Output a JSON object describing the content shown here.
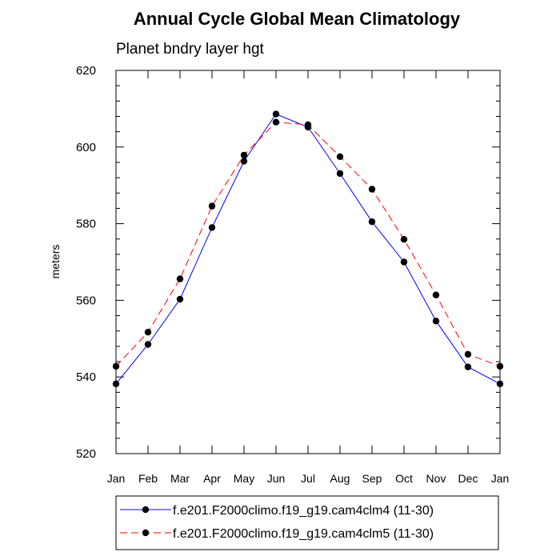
{
  "chart_data": {
    "type": "line",
    "title": "Annual Cycle Global Mean Climatology",
    "subtitle": "Planet bndry layer hgt",
    "xlabel": "",
    "ylabel": "meters",
    "categories": [
      "Jan",
      "Feb",
      "Mar",
      "Apr",
      "May",
      "Jun",
      "Jul",
      "Aug",
      "Sep",
      "Oct",
      "Nov",
      "Dec",
      "Jan"
    ],
    "ylim": [
      520,
      620
    ],
    "yticks": [
      520,
      540,
      560,
      580,
      600,
      620
    ],
    "series": [
      {
        "name": "f.e201.F2000climo.f19_g19.cam4clm4 (11-30)",
        "color": "#0000ff",
        "dash": "solid",
        "values": [
          538.2,
          548.5,
          560.3,
          579.0,
          596.3,
          608.6,
          605.2,
          593.1,
          580.5,
          570.0,
          554.6,
          542.6,
          538.2
        ]
      },
      {
        "name": "f.e201.F2000climo.f19_g19.cam4clm5 (11-30)",
        "color": "#ff0000",
        "dash": "dashed",
        "values": [
          542.8,
          551.7,
          565.6,
          584.6,
          597.9,
          606.5,
          605.8,
          597.5,
          589.0,
          575.9,
          561.4,
          545.9,
          542.8
        ]
      }
    ]
  }
}
